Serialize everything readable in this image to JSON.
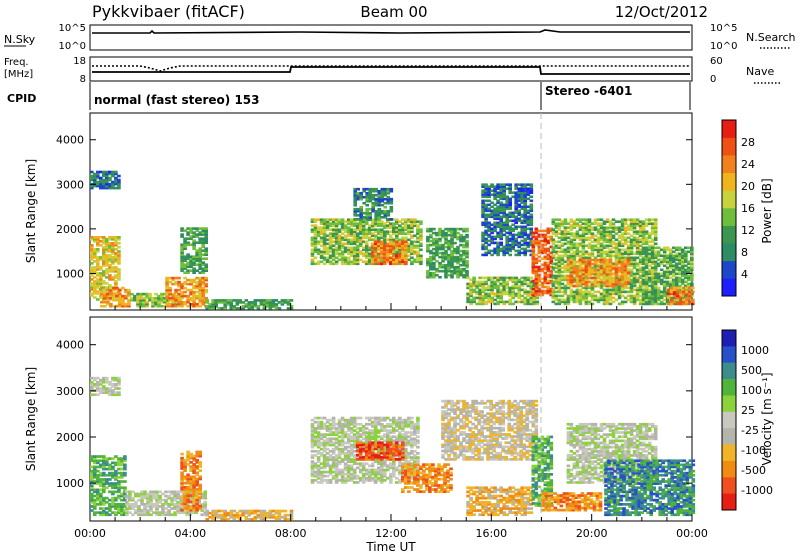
{
  "header": {
    "station": "Pykkvibaer (fitACF)",
    "beam": "Beam 00",
    "date": "12/Oct/2012"
  },
  "top_panels": {
    "nsky_label": "N.Sky",
    "nsky_ticks": [
      "10^5",
      "10^0"
    ],
    "nsearch_label": "N.Search",
    "nsearch_ticks": [
      "10^5",
      "10^0"
    ],
    "freq_label_1": "Freq.",
    "freq_label_2": "[MHz]",
    "freq_ticks": [
      "18",
      "8"
    ],
    "nave_label": "Nave",
    "nave_ticks": [
      "60",
      "0"
    ],
    "cpid_label": "CPID",
    "cpid_mode_1": "normal (fast stereo) 153",
    "cpid_mode_2": "Stereo -6401",
    "mode_change_time": 18.0
  },
  "colors": {
    "power": [
      "#1e1eff",
      "#1e46c8",
      "#2d8c64",
      "#3c9650",
      "#6ebe3c",
      "#c8d23c",
      "#f0b41e",
      "#f0821e",
      "#f05014",
      "#e61e14"
    ],
    "velocity": [
      "#e61e14",
      "#f0501e",
      "#f08c14",
      "#f0b428",
      "#b4b4aa",
      "#c8c8be",
      "#8cd23c",
      "#50b43c",
      "#3c8c8c",
      "#2850c8",
      "#1e1eb4"
    ]
  },
  "chart_data": [
    {
      "type": "heatmap",
      "name": "power",
      "xlabel": "",
      "ylabel": "Slant Range [km]",
      "y_ticks": [
        "1000",
        "2000",
        "3000",
        "4000"
      ],
      "ylim": [
        180,
        4600
      ],
      "xlim": [
        0,
        24
      ],
      "colorbar_label": "Power [dB]",
      "colorbar_ticks": [
        "4",
        "8",
        "12",
        "16",
        "20",
        "24",
        "28"
      ],
      "colorbar_range": [
        0,
        30
      ],
      "regions": [
        {
          "t0": 0.0,
          "t1": 1.1,
          "r0": 2900,
          "r1": 3300,
          "level": 6
        },
        {
          "t0": 0.0,
          "t1": 1.2,
          "r0": 400,
          "r1": 1800,
          "level": 18
        },
        {
          "t0": 0.4,
          "t1": 1.6,
          "r0": 250,
          "r1": 700,
          "level": 22
        },
        {
          "t0": 1.6,
          "t1": 3.6,
          "r0": 250,
          "r1": 550,
          "level": 14
        },
        {
          "t0": 3.0,
          "t1": 4.6,
          "r0": 250,
          "r1": 900,
          "level": 22
        },
        {
          "t0": 3.6,
          "t1": 4.6,
          "r0": 1000,
          "r1": 2000,
          "level": 10
        },
        {
          "t0": 4.6,
          "t1": 8.0,
          "r0": 200,
          "r1": 400,
          "level": 10
        },
        {
          "t0": 8.8,
          "t1": 13.2,
          "r0": 1200,
          "r1": 2200,
          "level": 14
        },
        {
          "t0": 11.2,
          "t1": 12.6,
          "r0": 1200,
          "r1": 1700,
          "level": 24
        },
        {
          "t0": 10.5,
          "t1": 12.0,
          "r0": 2200,
          "r1": 2900,
          "level": 8
        },
        {
          "t0": 13.4,
          "t1": 15.0,
          "r0": 900,
          "r1": 2000,
          "level": 10
        },
        {
          "t0": 15.0,
          "t1": 17.8,
          "r0": 300,
          "r1": 900,
          "level": 14
        },
        {
          "t0": 15.6,
          "t1": 17.6,
          "r0": 1400,
          "r1": 3000,
          "level": 6
        },
        {
          "t0": 17.6,
          "t1": 18.4,
          "r0": 500,
          "r1": 2000,
          "level": 26
        },
        {
          "t0": 18.4,
          "t1": 22.5,
          "r0": 300,
          "r1": 2200,
          "level": 14
        },
        {
          "t0": 19.0,
          "t1": 21.5,
          "r0": 700,
          "r1": 1300,
          "level": 22
        },
        {
          "t0": 22.0,
          "t1": 24.0,
          "r0": 300,
          "r1": 1600,
          "level": 12
        },
        {
          "t0": 23.0,
          "t1": 24.0,
          "r0": 300,
          "r1": 700,
          "level": 24
        }
      ]
    },
    {
      "type": "heatmap",
      "name": "velocity",
      "xlabel": "Time UT",
      "ylabel": "Slant Range [km]",
      "x_ticks": [
        "00:00",
        "04:00",
        "08:00",
        "12:00",
        "16:00",
        "20:00",
        "00:00"
      ],
      "y_ticks": [
        "1000",
        "2000",
        "3000",
        "4000"
      ],
      "ylim": [
        180,
        4600
      ],
      "xlim": [
        0,
        24
      ],
      "colorbar_label": "Velocity [m s⁻¹]",
      "colorbar_ticks": [
        "1000",
        "500",
        "100",
        "25",
        "-25",
        "-100",
        "-500",
        "-1000"
      ],
      "regions": [
        {
          "t0": 0.0,
          "t1": 1.1,
          "r0": 2900,
          "r1": 3300,
          "level": 5
        },
        {
          "t0": 0.0,
          "t1": 1.4,
          "r0": 300,
          "r1": 1600,
          "level": 7
        },
        {
          "t0": 1.4,
          "t1": 4.6,
          "r0": 300,
          "r1": 800,
          "level": 5
        },
        {
          "t0": 3.6,
          "t1": 4.4,
          "r0": 400,
          "r1": 1700,
          "level": 2
        },
        {
          "t0": 4.6,
          "t1": 8.0,
          "r0": 200,
          "r1": 400,
          "level": 3
        },
        {
          "t0": 8.8,
          "t1": 13.0,
          "r0": 1000,
          "r1": 2400,
          "level": 5
        },
        {
          "t0": 10.6,
          "t1": 12.4,
          "r0": 1500,
          "r1": 1900,
          "level": 1
        },
        {
          "t0": 12.4,
          "t1": 14.4,
          "r0": 800,
          "r1": 1400,
          "level": 2
        },
        {
          "t0": 14.0,
          "t1": 17.8,
          "r0": 1500,
          "r1": 2800,
          "level": 4
        },
        {
          "t0": 15.0,
          "t1": 17.6,
          "r0": 300,
          "r1": 900,
          "level": 3
        },
        {
          "t0": 17.6,
          "t1": 18.4,
          "r0": 500,
          "r1": 2000,
          "level": 7
        },
        {
          "t0": 18.0,
          "t1": 20.4,
          "r0": 400,
          "r1": 800,
          "level": 2
        },
        {
          "t0": 19.0,
          "t1": 22.5,
          "r0": 1000,
          "r1": 2300,
          "level": 5
        },
        {
          "t0": 20.5,
          "t1": 24.0,
          "r0": 300,
          "r1": 1500,
          "level": 8
        }
      ]
    }
  ]
}
